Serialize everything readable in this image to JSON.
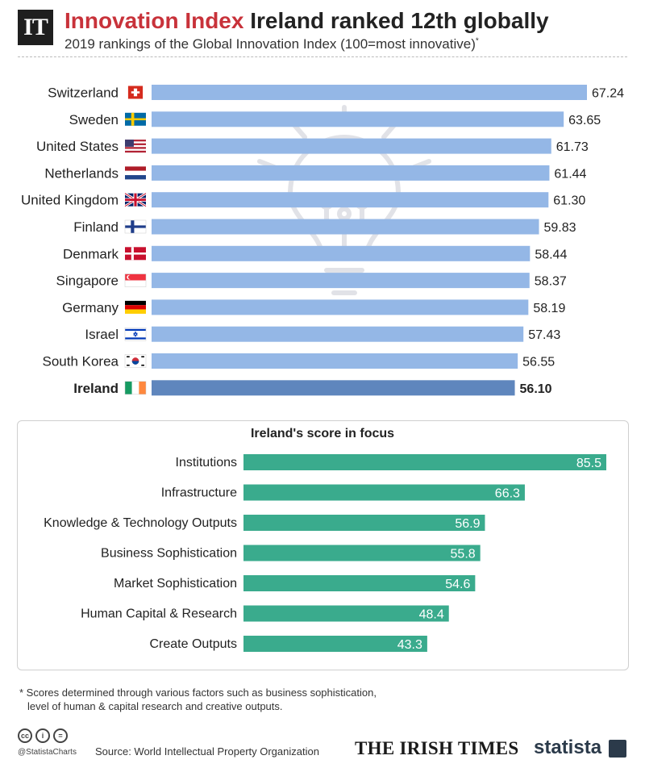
{
  "header": {
    "logo_text": "IT",
    "title_accent": "Innovation Index",
    "title_main": "Ireland ranked 12th globally",
    "subtitle": "2019 rankings of the Global Innovation Index (100=most innovative)",
    "subtitle_mark": "*"
  },
  "colors": {
    "title_accent": "#c8323a",
    "bar": "#94b7e6",
    "bar_highlight": "#5f86bd",
    "focus_bar": "#3aab8d",
    "watermark": "#c9ccd4"
  },
  "chart_data": [
    {
      "type": "bar",
      "orientation": "horizontal",
      "title": "2019 rankings of the Global Innovation Index (100=most innovative)",
      "categories": [
        "Switzerland",
        "Sweden",
        "United States",
        "Netherlands",
        "United Kingdom",
        "Finland",
        "Denmark",
        "Singapore",
        "Germany",
        "Israel",
        "South Korea",
        "Ireland"
      ],
      "values": [
        67.24,
        63.65,
        61.73,
        61.44,
        61.3,
        59.83,
        58.44,
        58.37,
        58.19,
        57.43,
        56.55,
        56.1
      ],
      "value_labels": [
        "67.24",
        "63.65",
        "61.73",
        "61.44",
        "61.30",
        "59.83",
        "58.44",
        "58.37",
        "58.19",
        "57.43",
        "56.55",
        "56.10"
      ],
      "flags": [
        "switzerland-flag-icon",
        "sweden-flag-icon",
        "united-states-flag-icon",
        "netherlands-flag-icon",
        "united-kingdom-flag-icon",
        "finland-flag-icon",
        "denmark-flag-icon",
        "singapore-flag-icon",
        "germany-flag-icon",
        "israel-flag-icon",
        "south-korea-flag-icon",
        "ireland-flag-icon"
      ],
      "highlight": "Ireland",
      "xlim": [
        0,
        67.24
      ]
    },
    {
      "type": "bar",
      "orientation": "horizontal",
      "title": "Ireland's score in focus",
      "categories": [
        "Institutions",
        "Infrastructure",
        "Knowledge & Technology Outputs",
        "Business Sophistication",
        "Market Sophistication",
        "Human Capital & Research",
        "Create Outputs"
      ],
      "values": [
        85.5,
        66.3,
        56.9,
        55.8,
        54.6,
        48.4,
        43.3
      ],
      "value_labels": [
        "85.5",
        "66.3",
        "56.9",
        "55.8",
        "54.6",
        "48.4",
        "43.3"
      ],
      "xlim": [
        0,
        85.5
      ]
    }
  ],
  "footnote": {
    "line1": "* Scores determined through various factors such as business sophistication,",
    "line2": "level of human & capital research and creative outputs."
  },
  "footer": {
    "handle": "@StatistaCharts",
    "source": "Source: World Intellectual Property Organization",
    "publisher": "THE IRISH TIMES",
    "brand": "statista"
  }
}
